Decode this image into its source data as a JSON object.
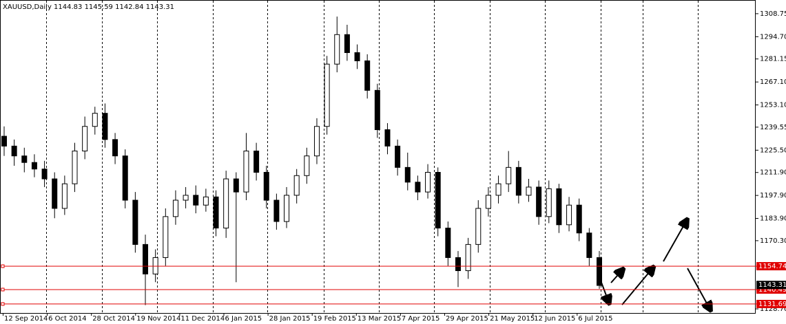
{
  "chart_data": {
    "type": "candlestick",
    "title": "XAUUSD,Daily  1144.83 1145.59 1142.84 1143.31",
    "x_labels": [
      "12 Sep 2014",
      "6 Oct 2014",
      "28 Oct 2014",
      "19 Nov 2014",
      "11 Dec 2014",
      "6 Jan 2015",
      "28 Jan 2015",
      "19 Feb 2015",
      "13 Mar 2015",
      "7 Apr 2015",
      "29 Apr 2015",
      "21 May 2015",
      "12 Jun 2015",
      "6 Jul 2015"
    ],
    "open": [
      1234,
      1228,
      1222,
      1218,
      1214,
      1208,
      1190,
      1205,
      1225,
      1240,
      1248,
      1232,
      1222,
      1195,
      1168,
      1150,
      1160,
      1185,
      1195,
      1198,
      1192,
      1197,
      1178,
      1208,
      1200,
      1225,
      1212,
      1195,
      1182,
      1198,
      1210,
      1222,
      1240,
      1278,
      1296,
      1285,
      1280,
      1262,
      1238,
      1228,
      1215,
      1206,
      1200,
      1212,
      1178,
      1160,
      1152,
      1168,
      1190,
      1198,
      1205,
      1215,
      1198,
      1203,
      1185,
      1202,
      1180,
      1192,
      1175,
      1160
    ],
    "high": [
      1240,
      1232,
      1227,
      1223,
      1219,
      1212,
      1210,
      1230,
      1246,
      1252,
      1254,
      1236,
      1226,
      1200,
      1174,
      1165,
      1190,
      1201,
      1203,
      1204,
      1202,
      1201,
      1213,
      1212,
      1236,
      1230,
      1216,
      1199,
      1203,
      1214,
      1227,
      1245,
      1283,
      1307,
      1302,
      1290,
      1284,
      1266,
      1242,
      1232,
      1224,
      1210,
      1217,
      1215,
      1182,
      1164,
      1172,
      1195,
      1203,
      1210,
      1225,
      1219,
      1208,
      1207,
      1207,
      1205,
      1197,
      1196,
      1178,
      1164
    ],
    "low": [
      1222,
      1216,
      1212,
      1209,
      1203,
      1184,
      1186,
      1200,
      1220,
      1235,
      1227,
      1217,
      1190,
      1163,
      1131,
      1145,
      1155,
      1180,
      1190,
      1187,
      1188,
      1173,
      1172,
      1145,
      1195,
      1207,
      1190,
      1177,
      1178,
      1193,
      1205,
      1217,
      1235,
      1273,
      1280,
      1275,
      1257,
      1233,
      1223,
      1210,
      1201,
      1195,
      1196,
      1173,
      1155,
      1142,
      1147,
      1163,
      1185,
      1193,
      1200,
      1193,
      1194,
      1180,
      1181,
      1175,
      1176,
      1170,
      1155,
      1141
    ],
    "close": [
      1228,
      1222,
      1218,
      1214,
      1208,
      1190,
      1205,
      1225,
      1240,
      1248,
      1232,
      1222,
      1195,
      1168,
      1150,
      1160,
      1185,
      1195,
      1198,
      1192,
      1197,
      1178,
      1208,
      1200,
      1225,
      1212,
      1195,
      1182,
      1198,
      1210,
      1222,
      1240,
      1278,
      1296,
      1285,
      1280,
      1262,
      1238,
      1228,
      1215,
      1206,
      1200,
      1212,
      1178,
      1160,
      1152,
      1168,
      1190,
      1198,
      1205,
      1215,
      1198,
      1203,
      1185,
      1202,
      1180,
      1192,
      1175,
      1160,
      1143
    ],
    "ylim": [
      1126.2,
      1317.1
    ],
    "yticks": [
      {
        "value": 1308.75,
        "label": "1308.75"
      },
      {
        "value": 1294.7,
        "label": "1294.70"
      },
      {
        "value": 1281.15,
        "label": "1281.15"
      },
      {
        "value": 1267.1,
        "label": "1267.10"
      },
      {
        "value": 1253.1,
        "label": "1253.10"
      },
      {
        "value": 1239.55,
        "label": "1239.55"
      },
      {
        "value": 1225.5,
        "label": "1225.50"
      },
      {
        "value": 1211.9,
        "label": "1211.90"
      },
      {
        "value": 1197.9,
        "label": "1197.90"
      },
      {
        "value": 1183.9,
        "label": "1183.90"
      },
      {
        "value": 1170.3,
        "label": "1170.30"
      },
      {
        "value": 1128.7,
        "label": "1128.70"
      }
    ],
    "levels": [
      1154.74,
      1140.49,
      1131.69
    ],
    "level_color": "#e00000",
    "last_price": 1143.31
  }
}
